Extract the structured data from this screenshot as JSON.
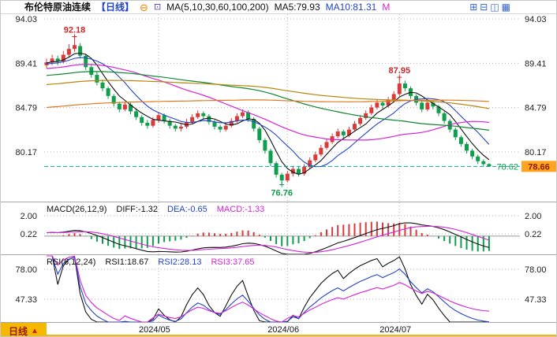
{
  "header": {
    "title": "布伦特原油连续",
    "period": "【日线】",
    "minus_icon": "⊖",
    "settings_icon": "⊡",
    "ma_label": "MA(5,10,30,60,100,200)",
    "ma5_label": "MA5:79.93",
    "ma10_label": "MA10:81.31",
    "ma_more_label": "M",
    "icons": [
      "⊞",
      "⊟",
      "◫",
      "▦"
    ]
  },
  "bottom": {
    "period_tab": "日线",
    "arrow": "▲"
  },
  "colors": {
    "up": "#d93a3a",
    "down": "#0f9e4c",
    "annRed": "#c82828",
    "cyan": "#00a3a3",
    "badge": "#ffa41e",
    "badgeText": "#8b1a00",
    "gold": "#f5b800",
    "magenta": "#d623d6",
    "blue": "#2244cc",
    "grid": "#b5b5b5",
    "ma": [
      "#111111",
      "#2244cc",
      "#d623d6",
      "#11862f",
      "#b8860b",
      "#e07820"
    ]
  },
  "chart_data": [
    {
      "type": "candlestick",
      "title": "布伦特原油连续 日线",
      "y_ticks": [
        94.03,
        89.41,
        84.79,
        80.17
      ],
      "last_price": 78.66,
      "current_label": 78.62,
      "high_labels": [
        {
          "value": 92.18,
          "bar": 5
        },
        {
          "value": 87.95,
          "bar": 63
        }
      ],
      "low_label": {
        "value": 76.76,
        "bar": 42
      },
      "ma_periods": [
        5,
        10,
        30,
        60,
        100,
        200
      ],
      "x_labels": [
        {
          "label": "2024/05",
          "bar": 20
        },
        {
          "label": "2024/06",
          "bar": 43
        },
        {
          "label": "2024/07",
          "bar": 63
        }
      ],
      "candles": [
        [
          89.2,
          89.9,
          88.9,
          89.5
        ],
        [
          89.5,
          90.3,
          89.2,
          89.9
        ],
        [
          89.9,
          90.2,
          89.2,
          89.6
        ],
        [
          89.6,
          90.7,
          89.4,
          90.3
        ],
        [
          90.3,
          91.4,
          90.0,
          90.9
        ],
        [
          90.9,
          92.18,
          90.6,
          91.3
        ],
        [
          91.2,
          91.5,
          89.9,
          90.2
        ],
        [
          90.2,
          90.4,
          88.7,
          89.0
        ],
        [
          89.0,
          89.3,
          87.9,
          88.2
        ],
        [
          88.2,
          88.5,
          87.1,
          87.4
        ],
        [
          87.4,
          87.7,
          86.5,
          86.8
        ],
        [
          86.8,
          87.0,
          85.7,
          86.0
        ],
        [
          86.0,
          86.2,
          84.9,
          85.2
        ],
        [
          85.2,
          85.4,
          84.3,
          84.6
        ],
        [
          84.6,
          85.4,
          84.4,
          85.1
        ],
        [
          85.1,
          85.3,
          84.1,
          84.4
        ],
        [
          84.4,
          84.7,
          83.5,
          83.8
        ],
        [
          83.8,
          84.0,
          82.9,
          83.2
        ],
        [
          83.2,
          83.5,
          82.6,
          82.9
        ],
        [
          82.9,
          83.8,
          82.7,
          83.5
        ],
        [
          83.5,
          84.3,
          83.2,
          84.0
        ],
        [
          84.0,
          84.2,
          83.1,
          83.4
        ],
        [
          83.4,
          83.6,
          82.6,
          82.9
        ],
        [
          82.9,
          83.1,
          82.3,
          82.6
        ],
        [
          82.6,
          83.1,
          82.3,
          82.8
        ],
        [
          82.8,
          83.6,
          82.6,
          83.3
        ],
        [
          83.3,
          84.1,
          83.1,
          83.8
        ],
        [
          83.8,
          84.5,
          83.6,
          84.2
        ],
        [
          84.2,
          84.4,
          83.6,
          83.9
        ],
        [
          83.9,
          84.1,
          83.0,
          83.3
        ],
        [
          83.3,
          83.5,
          82.5,
          82.8
        ],
        [
          82.8,
          83.0,
          82.2,
          82.5
        ],
        [
          82.5,
          83.2,
          82.3,
          82.9
        ],
        [
          82.9,
          83.7,
          82.7,
          83.4
        ],
        [
          83.4,
          84.2,
          83.2,
          83.9
        ],
        [
          83.9,
          84.6,
          83.7,
          84.3
        ],
        [
          84.3,
          84.5,
          83.3,
          83.6
        ],
        [
          83.6,
          83.8,
          82.3,
          82.6
        ],
        [
          82.6,
          82.8,
          81.1,
          81.4
        ],
        [
          81.4,
          81.6,
          80.0,
          80.3
        ],
        [
          80.3,
          80.5,
          78.7,
          79.0
        ],
        [
          79.0,
          79.2,
          77.5,
          77.8
        ],
        [
          77.8,
          78.0,
          76.76,
          77.2
        ],
        [
          77.2,
          78.2,
          77.0,
          77.9
        ],
        [
          77.9,
          78.7,
          77.6,
          78.4
        ],
        [
          78.4,
          78.6,
          77.6,
          77.9
        ],
        [
          77.9,
          78.9,
          77.7,
          78.6
        ],
        [
          78.6,
          79.6,
          78.4,
          79.3
        ],
        [
          79.3,
          80.2,
          79.1,
          79.9
        ],
        [
          79.9,
          80.9,
          79.7,
          80.6
        ],
        [
          80.6,
          81.5,
          80.4,
          81.2
        ],
        [
          81.2,
          82.1,
          81.0,
          81.8
        ],
        [
          81.8,
          82.6,
          81.6,
          82.3
        ],
        [
          82.3,
          82.5,
          81.6,
          81.9
        ],
        [
          81.9,
          82.8,
          81.7,
          82.5
        ],
        [
          82.5,
          83.4,
          82.3,
          83.1
        ],
        [
          83.1,
          84.0,
          82.9,
          83.7
        ],
        [
          83.7,
          84.5,
          83.5,
          84.2
        ],
        [
          84.2,
          85.1,
          84.0,
          84.8
        ],
        [
          84.8,
          85.6,
          84.6,
          85.3
        ],
        [
          85.3,
          85.5,
          84.7,
          85.0
        ],
        [
          85.0,
          85.9,
          84.8,
          85.6
        ],
        [
          85.6,
          86.5,
          85.4,
          86.2
        ],
        [
          86.2,
          87.95,
          86.0,
          87.3
        ],
        [
          87.3,
          87.6,
          86.5,
          86.8
        ],
        [
          86.8,
          87.0,
          85.7,
          86.0
        ],
        [
          86.0,
          86.2,
          85.0,
          85.3
        ],
        [
          85.3,
          85.5,
          84.3,
          84.6
        ],
        [
          84.6,
          85.6,
          84.4,
          85.3
        ],
        [
          85.3,
          85.5,
          84.6,
          84.9
        ],
        [
          84.9,
          85.1,
          83.9,
          84.2
        ],
        [
          84.2,
          84.4,
          83.1,
          83.4
        ],
        [
          83.4,
          83.6,
          82.2,
          82.5
        ],
        [
          82.5,
          82.7,
          81.4,
          81.7
        ],
        [
          81.7,
          81.9,
          80.7,
          81.0
        ],
        [
          81.0,
          81.2,
          80.0,
          80.3
        ],
        [
          80.3,
          80.5,
          79.4,
          79.7
        ],
        [
          79.7,
          79.9,
          78.9,
          79.2
        ],
        [
          79.2,
          79.4,
          78.7,
          78.9
        ],
        [
          78.9,
          79.0,
          78.62,
          78.66
        ]
      ]
    },
    {
      "type": "macd",
      "label": "MACD(26,12,9)",
      "diff_label": "DIFF:-1.32",
      "dea_label": "DEA:-0.65",
      "macd_label": "MACD:-1.33",
      "params": [
        26,
        12,
        9
      ],
      "y_ticks": [
        2.0,
        0.22
      ]
    },
    {
      "type": "rsi",
      "label": "RSI(6,12,24)",
      "rsi1_label": "RSI1:18.67",
      "rsi2_label": "RSI2:28.13",
      "rsi3_label": "RSI3:37.65",
      "params": [
        6,
        12,
        24
      ],
      "y_ticks": [
        78.0,
        47.33
      ]
    }
  ]
}
